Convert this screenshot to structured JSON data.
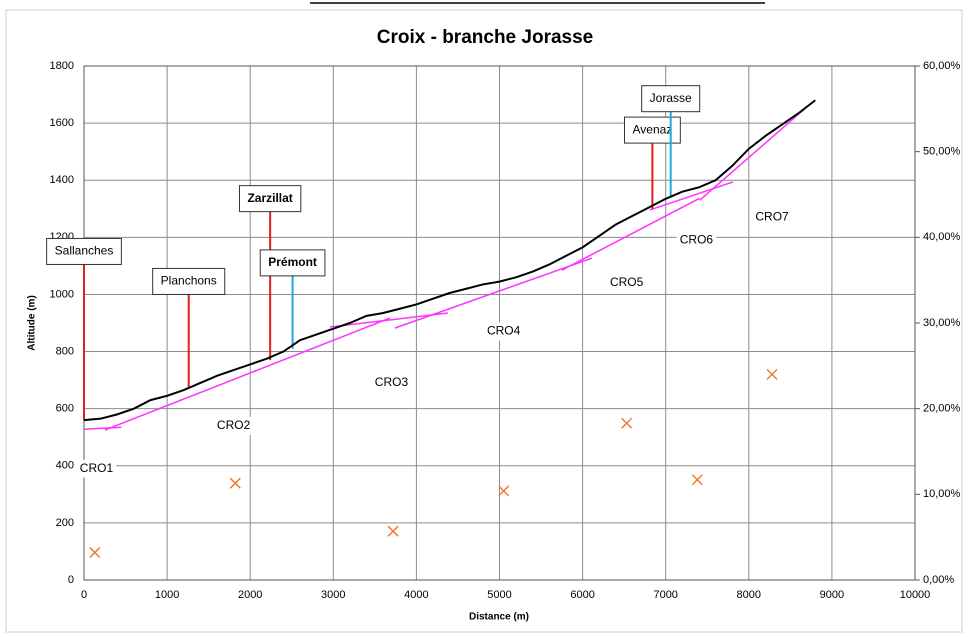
{
  "chart_data": {
    "type": "line",
    "title": "Croix - branche Jorasse",
    "x_label": "Distance (m)",
    "y_label": "Altitude (m)",
    "xlim": [
      0,
      10000
    ],
    "xticks": [
      0,
      1000,
      2000,
      3000,
      4000,
      5000,
      6000,
      7000,
      8000,
      9000,
      10000
    ],
    "ylim": [
      0,
      1800
    ],
    "yticks": [
      0,
      200,
      400,
      600,
      800,
      1000,
      1200,
      1400,
      1600,
      1800
    ],
    "y2lim": [
      0,
      60
    ],
    "y2ticks": [
      {
        "value": 0,
        "label": "0,00%"
      },
      {
        "value": 10,
        "label": "10,00%"
      },
      {
        "value": 20,
        "label": "20,00%"
      },
      {
        "value": 30,
        "label": "30,00%"
      },
      {
        "value": 40,
        "label": "40,00%"
      },
      {
        "value": 50,
        "label": "50,00%"
      },
      {
        "value": 60,
        "label": "60,00%"
      }
    ],
    "grid": true,
    "series": [
      {
        "type": "line",
        "color": "#000000",
        "x": [
          0,
          200,
          400,
          600,
          800,
          1000,
          1200,
          1400,
          1600,
          1800,
          2000,
          2200,
          2400,
          2600,
          2800,
          3000,
          3200,
          3400,
          3600,
          3800,
          4000,
          4200,
          4400,
          4600,
          4800,
          5000,
          5200,
          5400,
          5600,
          5800,
          6000,
          6200,
          6400,
          6600,
          6800,
          7000,
          7200,
          7400,
          7600,
          7800,
          8000,
          8200,
          8400,
          8600,
          8800
        ],
        "values": [
          560,
          565,
          580,
          600,
          630,
          645,
          665,
          690,
          715,
          735,
          755,
          775,
          800,
          840,
          860,
          880,
          900,
          925,
          935,
          950,
          965,
          985,
          1005,
          1020,
          1035,
          1045,
          1060,
          1080,
          1105,
          1135,
          1165,
          1205,
          1245,
          1275,
          1305,
          1335,
          1360,
          1375,
          1400,
          1450,
          1510,
          1555,
          1595,
          1635,
          1680
        ]
      },
      {
        "type": "scatter",
        "axis": "y2",
        "color": "#ed7d31",
        "x": [
          130,
          1820,
          3720,
          5050,
          6530,
          7380,
          8280
        ],
        "values": [
          3.2,
          11.3,
          5.7,
          10.4,
          18.3,
          11.7,
          24
        ]
      }
    ],
    "fit_lines": {
      "color": "#ff33ff",
      "segments": [
        {
          "x": [
            0,
            450
          ],
          "values": [
            528,
            535
          ]
        },
        {
          "x": [
            250,
            3680
          ],
          "values": [
            525,
            917
          ]
        },
        {
          "x": [
            2960,
            4380
          ],
          "values": [
            886,
            935
          ]
        },
        {
          "x": [
            3740,
            6110
          ],
          "values": [
            882,
            1127
          ]
        },
        {
          "x": [
            5750,
            7410
          ],
          "values": [
            1085,
            1337
          ]
        },
        {
          "x": [
            6810,
            7810
          ],
          "values": [
            1296,
            1394
          ]
        },
        {
          "x": [
            7410,
            8680
          ],
          "values": [
            1330,
            1652
          ]
        }
      ]
    },
    "markers": [
      {
        "label": "Sallanches",
        "x": 0,
        "ymin": 560,
        "ymax": 1105,
        "color": "#e02020",
        "bold": false
      },
      {
        "label": "Planchons",
        "x": 1260,
        "ymin": 670,
        "ymax": 1000,
        "color": "#e02020",
        "bold": false
      },
      {
        "label": "Zarzillat",
        "x": 2240,
        "ymin": 770,
        "ymax": 1290,
        "color": "#e02020",
        "bold": true
      },
      {
        "label": "Prémont",
        "x": 2510,
        "ymin": 810,
        "ymax": 1065,
        "color": "#1fa8e0",
        "bold": true
      },
      {
        "label": "Avenaz",
        "x": 6840,
        "ymin": 1300,
        "ymax": 1530,
        "color": "#e02020",
        "bold": false
      },
      {
        "label": "Jorasse",
        "x": 7060,
        "ymin": 1340,
        "ymax": 1640,
        "color": "#1fa8e0",
        "bold": false
      }
    ],
    "annotations": [
      {
        "text": "CRO1",
        "x": 150,
        "y": 390
      },
      {
        "text": "CRO2",
        "x": 1800,
        "y": 540
      },
      {
        "text": "CRO3",
        "x": 3700,
        "y": 690
      },
      {
        "text": "CRO4",
        "x": 5050,
        "y": 870
      },
      {
        "text": "CRO5",
        "x": 6530,
        "y": 1040
      },
      {
        "text": "CRO6",
        "x": 7370,
        "y": 1190
      },
      {
        "text": "CRO7",
        "x": 8280,
        "y": 1270
      }
    ]
  }
}
